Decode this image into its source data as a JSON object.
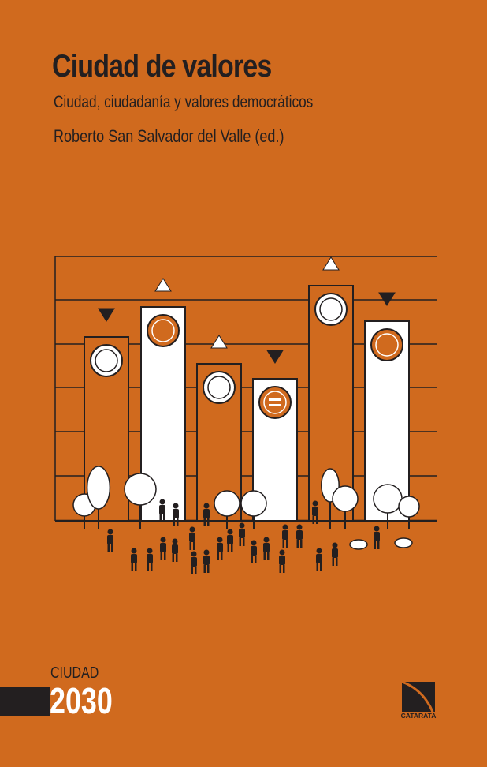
{
  "cover": {
    "title": "Ciudad de valores",
    "subtitle": "Ciudad, ciudadanía y valores democráticos",
    "author": "Roberto San Salvador del Valle (ed.)",
    "series_label": "CIUDAD",
    "series_year": "2030",
    "publisher": "CATARATA",
    "background_color": "#d06a1e"
  },
  "illustration": {
    "bars": [
      {
        "fill": "orange",
        "trend": "down",
        "icon": "scales-icon"
      },
      {
        "fill": "white",
        "trend": "up",
        "icon": "leaf-icon"
      },
      {
        "fill": "orange",
        "trend": "up",
        "icon": "coins-icon"
      },
      {
        "fill": "white",
        "trend": "down",
        "icon": "equals-icon"
      },
      {
        "fill": "orange",
        "trend": "up",
        "icon": "lightbulb-icon"
      },
      {
        "fill": "white",
        "trend": "down",
        "icon": "umbrella-family-icon"
      }
    ]
  }
}
